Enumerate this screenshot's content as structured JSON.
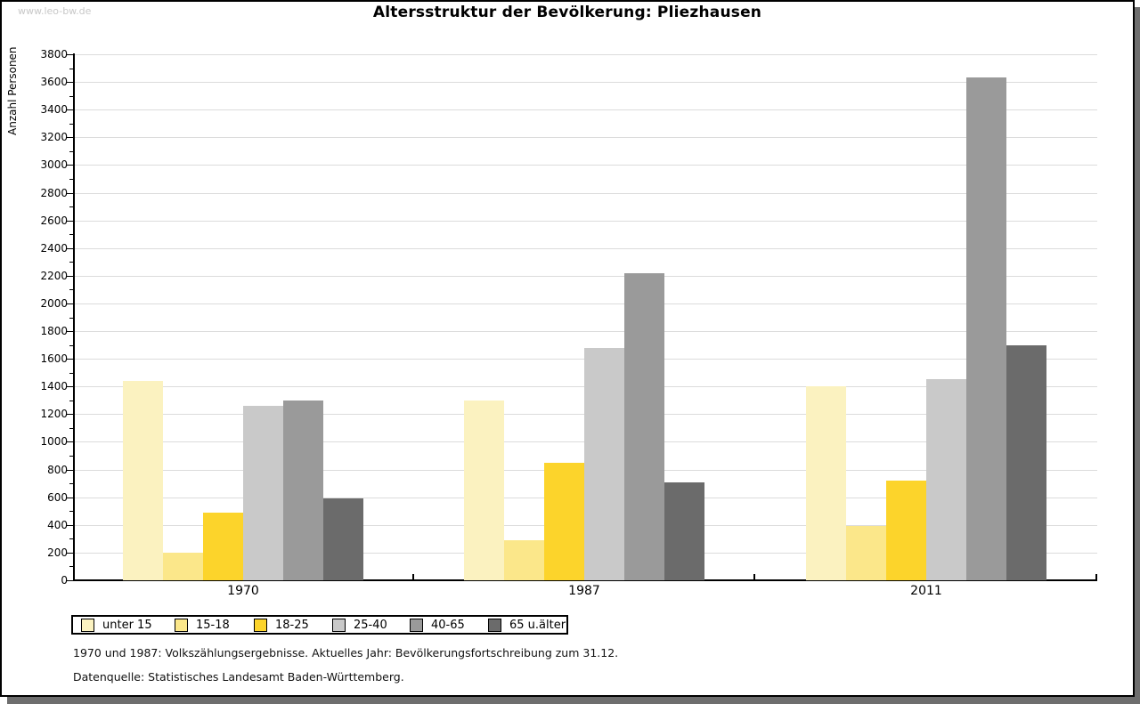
{
  "watermark": "www.leo-bw.de",
  "footer": {
    "line1": "1970 und 1987: Volkszählungsergebnisse. Aktuelles Jahr: Bevölkerungsfortschreibung zum 31.12.",
    "line2": "Datenquelle: Statistisches Landesamt Baden-Württemberg."
  },
  "chart_data": {
    "type": "bar",
    "title": "Altersstruktur der Bevölkerung: Pliezhausen",
    "xlabel": "",
    "ylabel": "Anzahl Personen",
    "categories": [
      "1970",
      "1987",
      "2011"
    ],
    "series": [
      {
        "name": "unter 15",
        "color": "#FBF2C0",
        "values": [
          1440,
          1300,
          1400
        ]
      },
      {
        "name": "15-18",
        "color": "#FBE78A",
        "values": [
          200,
          290,
          390
        ]
      },
      {
        "name": "18-25",
        "color": "#FCD42B",
        "values": [
          490,
          850,
          720
        ]
      },
      {
        "name": "25-40",
        "color": "#C9C9C9",
        "values": [
          1260,
          1680,
          1450
        ]
      },
      {
        "name": "40-65",
        "color": "#9A9A9A",
        "values": [
          1300,
          2220,
          3630
        ]
      },
      {
        "name": "65 u.älter",
        "color": "#6B6B6B",
        "values": [
          590,
          710,
          1700
        ]
      }
    ],
    "ylim": [
      0,
      3800
    ],
    "ytick_step": 200,
    "ytick_minor_step": 100,
    "grid": true,
    "legend_position": "bottom-left",
    "axis_color": "#000000",
    "gridline_color": "#dcdcdc"
  }
}
